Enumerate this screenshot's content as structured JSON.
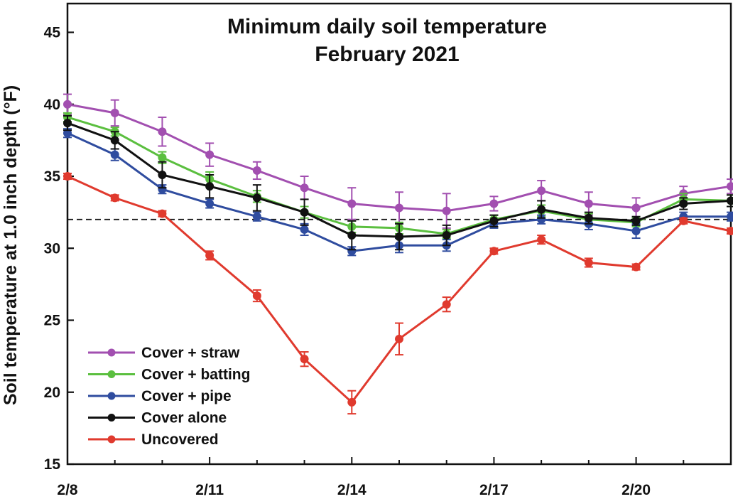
{
  "chart_data": {
    "type": "line",
    "title": "Minimum daily soil temperature",
    "subtitle": "February 2021",
    "xlabel": "",
    "ylabel": "Soil temperature at 1.0 inch depth (°F)",
    "ylim": [
      15,
      47
    ],
    "xlim": [
      "2/8",
      "2/22"
    ],
    "yticks": [
      15,
      20,
      25,
      30,
      35,
      40,
      45
    ],
    "xticks": [
      "2/8",
      "2/11",
      "2/14",
      "2/17",
      "2/20"
    ],
    "x": [
      "2/8",
      "2/9",
      "2/10",
      "2/11",
      "2/12",
      "2/13",
      "2/14",
      "2/15",
      "2/16",
      "2/17",
      "2/18",
      "2/19",
      "2/20",
      "2/21",
      "2/22"
    ],
    "reference_line": {
      "y": 32,
      "style": "dashed",
      "color": "#111111"
    },
    "grid": false,
    "legend_position": "bottom-left",
    "series": [
      {
        "name": "Cover + straw",
        "color": "#a24fb0",
        "values": [
          40.0,
          39.4,
          38.1,
          36.5,
          35.4,
          34.2,
          33.1,
          32.8,
          32.6,
          33.1,
          34.0,
          33.1,
          32.8,
          33.8,
          34.3
        ],
        "errors": [
          0.7,
          0.9,
          1.0,
          0.8,
          0.6,
          0.8,
          1.1,
          1.1,
          1.2,
          0.5,
          0.7,
          0.8,
          0.7,
          0.5,
          0.5
        ]
      },
      {
        "name": "Cover + batting",
        "color": "#5bbf3f",
        "values": [
          39.1,
          38.1,
          36.3,
          34.8,
          33.6,
          32.5,
          31.5,
          31.4,
          31.0,
          32.0,
          32.6,
          32.0,
          31.8,
          33.4,
          33.3
        ],
        "errors": [
          0.3,
          0.3,
          0.4,
          0.5,
          0.4,
          0.4,
          0.4,
          0.4,
          0.3,
          0.3,
          0.4,
          0.4,
          0.3,
          0.4,
          0.4
        ]
      },
      {
        "name": "Cover + pipe",
        "color": "#2f4c9f",
        "values": [
          38.0,
          36.5,
          34.1,
          33.1,
          32.2,
          31.3,
          29.8,
          30.2,
          30.2,
          31.7,
          32.0,
          31.7,
          31.2,
          32.2,
          32.2
        ],
        "errors": [
          0.3,
          0.4,
          0.3,
          0.3,
          0.3,
          0.4,
          0.3,
          0.5,
          0.4,
          0.3,
          0.3,
          0.4,
          0.5,
          0.3,
          0.3
        ]
      },
      {
        "name": "Cover alone",
        "color": "#111111",
        "values": [
          38.7,
          37.5,
          35.1,
          34.3,
          33.5,
          32.5,
          30.9,
          30.8,
          30.9,
          31.9,
          32.7,
          32.1,
          31.9,
          33.1,
          33.3
        ],
        "errors": [
          0.5,
          0.6,
          0.9,
          0.8,
          0.9,
          0.9,
          1.0,
          0.9,
          0.7,
          0.4,
          0.6,
          0.4,
          0.3,
          0.4,
          0.4
        ]
      },
      {
        "name": "Uncovered",
        "color": "#e03a2e",
        "values": [
          35.0,
          33.5,
          32.4,
          29.5,
          26.7,
          22.3,
          19.3,
          23.7,
          26.1,
          29.8,
          30.6,
          29.0,
          28.7,
          31.9,
          31.2
        ],
        "errors": [
          0.2,
          0.2,
          0.2,
          0.3,
          0.4,
          0.5,
          0.8,
          1.1,
          0.5,
          0.2,
          0.3,
          0.3,
          0.2,
          0.2,
          0.2
        ]
      }
    ]
  }
}
